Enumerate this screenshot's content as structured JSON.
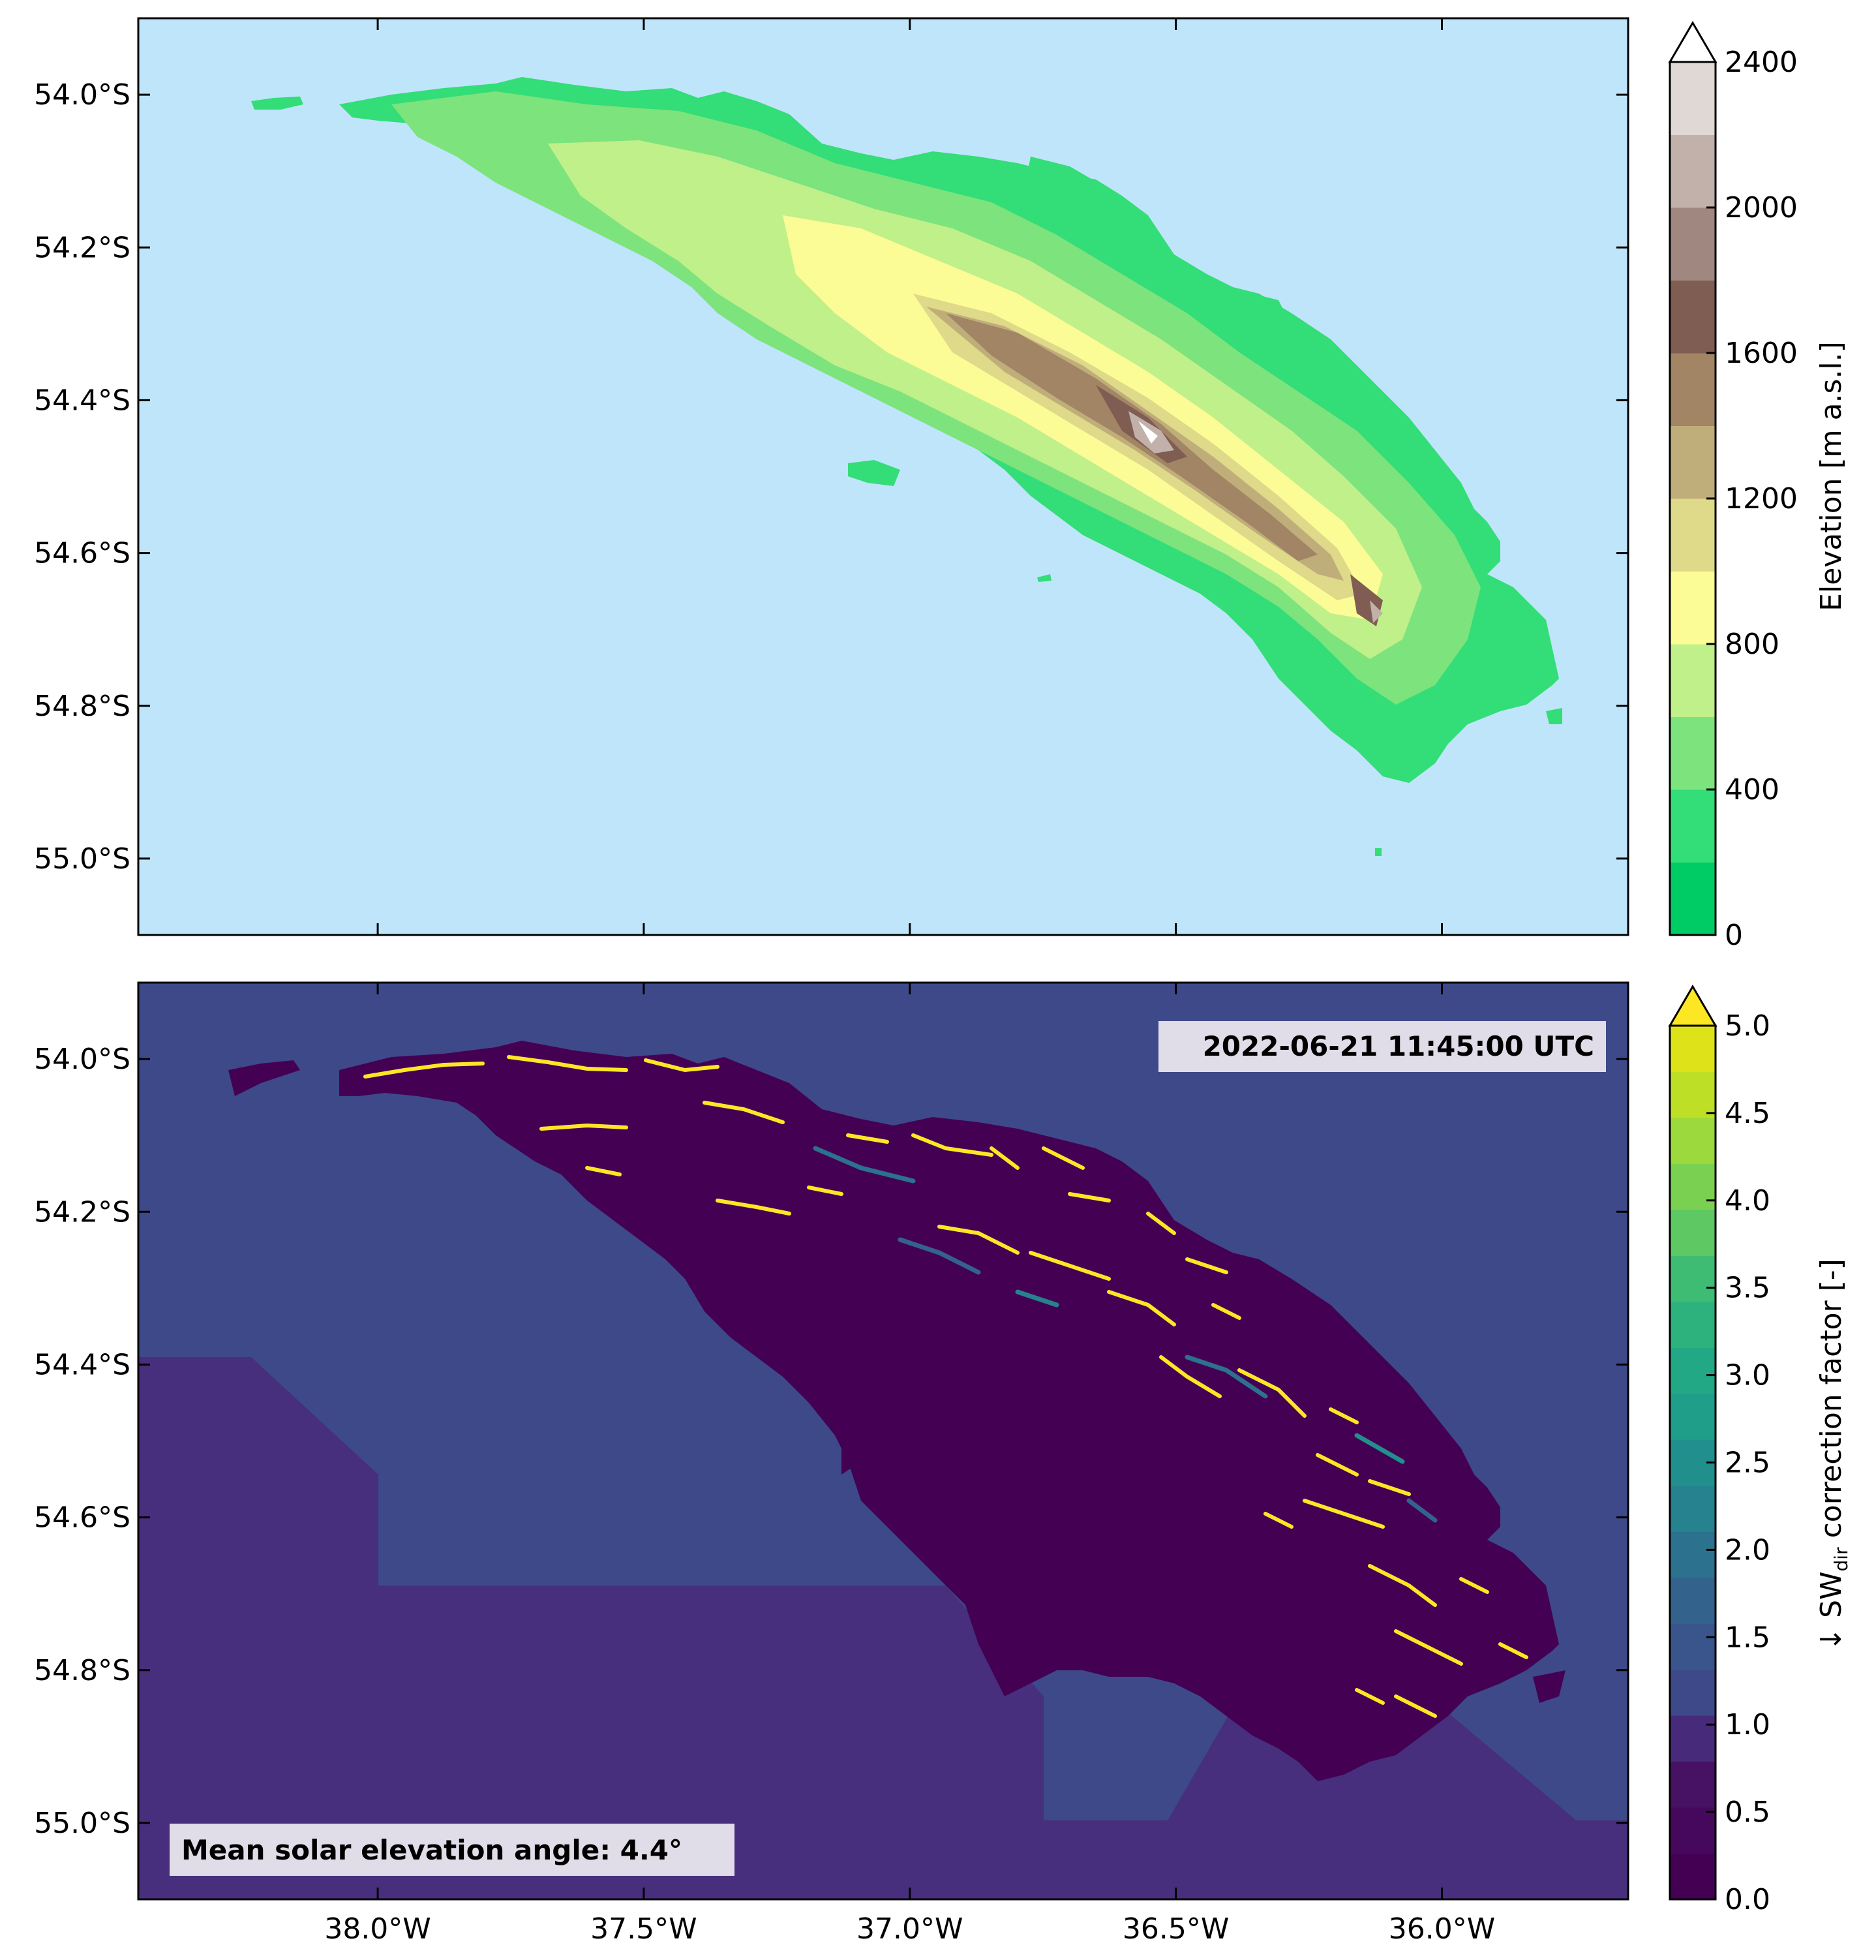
{
  "figure": {
    "lat_ticks": [
      "54.0°S",
      "54.2°S",
      "54.4°S",
      "54.6°S",
      "54.8°S",
      "55.0°S"
    ],
    "lon_ticks": [
      "38.0°W",
      "37.5°W",
      "37.0°W",
      "36.5°W",
      "36.0°W"
    ],
    "lat_values": [
      -54.0,
      -54.2,
      -54.4,
      -54.6,
      -54.8,
      -55.0
    ],
    "lon_values": [
      -38.0,
      -37.5,
      -37.0,
      -36.5,
      -36.0
    ],
    "lat_range": [
      -55.1,
      -53.9
    ],
    "lon_range": [
      -38.45,
      -35.65
    ]
  },
  "top_panel": {
    "colorbar_label": "Elevation [m a.s.l.]",
    "colorbar_ticks": [
      "0",
      "400",
      "800",
      "1200",
      "1600",
      "2000",
      "2400"
    ],
    "colorbar_levels": [
      0,
      200,
      400,
      600,
      800,
      1000,
      1200,
      1400,
      1600,
      1800,
      2000,
      2200,
      2400
    ],
    "colorbar_extend": "max",
    "colors": [
      "#00cc66",
      "#33dd77",
      "#7de37d",
      "#c0f08a",
      "#fcfc96",
      "#dfd98a",
      "#c0ae7a",
      "#a18565",
      "#7f5d52",
      "#a08880",
      "#c2b0aa",
      "#dfd8d5",
      "#ffffff"
    ],
    "ocean_color": "#bfe5fb"
  },
  "bottom_panel": {
    "colorbar_label_prefix": "↓ SW",
    "colorbar_label_subscript": "dir",
    "colorbar_label_suffix": " correction factor [-]",
    "colorbar_ticks": [
      "0.0",
      "0.5",
      "1.0",
      "1.5",
      "2.0",
      "2.5",
      "3.0",
      "3.5",
      "4.0",
      "4.5",
      "5.0"
    ],
    "colorbar_levels": [
      0,
      0.25,
      0.5,
      0.75,
      1.0,
      1.25,
      1.5,
      1.75,
      2.0,
      2.25,
      2.5,
      2.75,
      3.0,
      3.25,
      3.5,
      3.75,
      4.0,
      4.25,
      4.5,
      4.75,
      5.0
    ],
    "colors": [
      "#440154",
      "#46085c",
      "#471164",
      "#472a7a",
      "#3e4989",
      "#3a548c",
      "#33638d",
      "#2c718e",
      "#26828e",
      "#21908d",
      "#1f9e89",
      "#22a884",
      "#2db27d",
      "#3fbc73",
      "#5ec962",
      "#7ad151",
      "#9bd93c",
      "#bddf26",
      "#dde318",
      "#fde725"
    ],
    "datetime": "2022-06-21 11:45:00 UTC",
    "caption": "Mean solar elevation angle: 4.4°"
  }
}
